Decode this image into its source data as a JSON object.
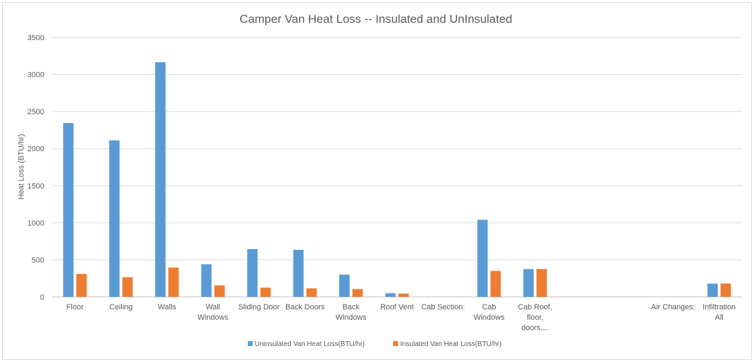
{
  "chart_data": {
    "type": "bar",
    "title": "Camper Van Heat Loss -- Insulated and UnInsulated",
    "xlabel": "",
    "ylabel": "Heat Loss (BTU/hr)",
    "ylim": [
      0,
      3500
    ],
    "yticks": [
      0,
      500,
      1000,
      1500,
      2000,
      2500,
      3000,
      3500
    ],
    "grid": true,
    "legend_position": "bottom",
    "categories": [
      "Floor",
      "Ceiling",
      "Walls",
      "Wall Windows",
      "Sliding Door",
      "Back Doors",
      "Back Windows",
      "Roof Vent",
      "Cab Section:",
      "Cab Windows",
      "Cab Roof, floor, doors,...",
      "",
      "",
      "Air Changes:",
      "Infiltration All"
    ],
    "category_lines": [
      [
        "Floor"
      ],
      [
        "Ceiling"
      ],
      [
        "Walls"
      ],
      [
        "Wall",
        "Windows"
      ],
      [
        "Sliding Door"
      ],
      [
        "Back Doors"
      ],
      [
        "Back",
        "Windows"
      ],
      [
        "Roof Vent"
      ],
      [
        "Cab Section:"
      ],
      [
        "Cab",
        "Windows"
      ],
      [
        "Cab Roof,",
        "floor,",
        "doors,..."
      ],
      [],
      [],
      [
        "Air Changes:"
      ],
      [
        "Infiltration",
        "All"
      ]
    ],
    "series": [
      {
        "name": "Uninsulated Van Heat Loss(BTU/hr)",
        "color": "#5b9bd5",
        "values": [
          2345,
          2110,
          3165,
          440,
          645,
          635,
          300,
          50,
          null,
          1040,
          375,
          null,
          null,
          null,
          180
        ]
      },
      {
        "name": "Insulated Van Heat Loss(BTU/hr)",
        "color": "#ed7d31",
        "values": [
          310,
          265,
          395,
          155,
          125,
          115,
          105,
          45,
          null,
          350,
          375,
          null,
          null,
          null,
          180
        ]
      }
    ]
  }
}
